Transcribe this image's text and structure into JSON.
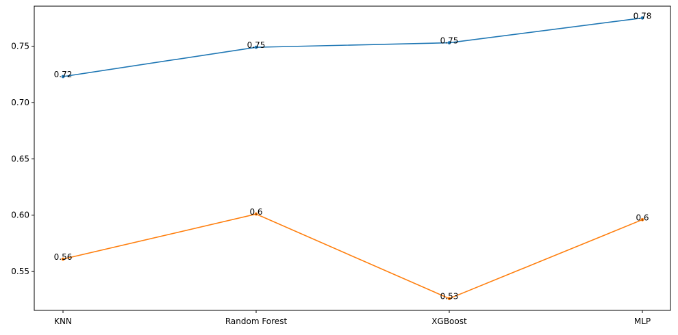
{
  "chart_data": {
    "type": "line",
    "categories": [
      "KNN",
      "Random Forest",
      "XGBoost",
      "MLP"
    ],
    "series": [
      {
        "color": "#1f77b4",
        "values": [
          0.723,
          0.749,
          0.753,
          0.775
        ],
        "labels": [
          "0.72",
          "0.75",
          "0.75",
          "0.78"
        ]
      },
      {
        "color": "#ff7f0e",
        "values": [
          0.561,
          0.601,
          0.526,
          0.596
        ],
        "labels": [
          "0.56",
          "0.6",
          "0.53",
          "0.6"
        ]
      }
    ],
    "yticks": [
      0.55,
      0.6,
      0.65,
      0.7,
      0.75
    ],
    "ytick_labels": [
      "0.55",
      "0.60",
      "0.65",
      "0.70",
      "0.75"
    ],
    "ylim": [
      0.5155,
      0.7855
    ],
    "grid": false,
    "title": "",
    "xlabel": "",
    "ylabel": ""
  }
}
